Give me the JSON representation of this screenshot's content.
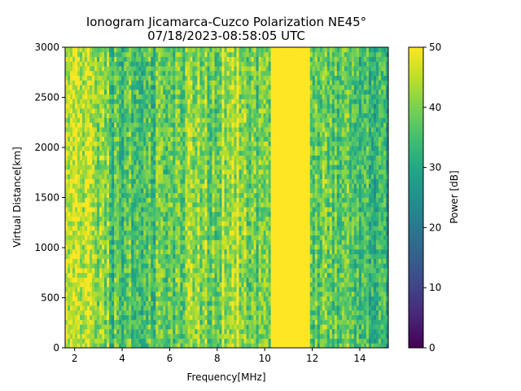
{
  "chart_data": {
    "type": "heatmap",
    "title": "Ionogram Jicamarca-Cuzco Polarization NE45°",
    "subtitle": "07/18/2023-08:58:05 UTC",
    "xlabel": "Frequency[MHz]",
    "ylabel": "Virtual Distance[km]",
    "colorbar_label": "Power [dB]",
    "colormap": "viridis",
    "xlim": [
      1.6,
      15.2
    ],
    "ylim": [
      0,
      3000
    ],
    "clim": [
      0,
      50
    ],
    "x_ticks": [
      2,
      4,
      6,
      8,
      10,
      12,
      14
    ],
    "y_ticks": [
      0,
      500,
      1000,
      1500,
      2000,
      2500,
      3000
    ],
    "colorbar_ticks": [
      0,
      10,
      20,
      30,
      40,
      50
    ],
    "frequency_bands": [
      {
        "x0": 1.6,
        "x1": 2.5,
        "power": 45
      },
      {
        "x0": 2.5,
        "x1": 3.5,
        "power": 42
      },
      {
        "x0": 3.5,
        "x1": 5.5,
        "power": 36
      },
      {
        "x0": 5.5,
        "x1": 6.8,
        "power": 38
      },
      {
        "x0": 6.8,
        "x1": 8.2,
        "power": 40
      },
      {
        "x0": 8.2,
        "x1": 9.1,
        "power": 44
      },
      {
        "x0": 9.1,
        "x1": 10.3,
        "power": 39
      },
      {
        "x0": 10.3,
        "x1": 11.9,
        "power": 50
      },
      {
        "x0": 11.9,
        "x1": 13.8,
        "power": 38
      },
      {
        "x0": 13.8,
        "x1": 15.2,
        "power": 33
      }
    ],
    "grid": false
  }
}
